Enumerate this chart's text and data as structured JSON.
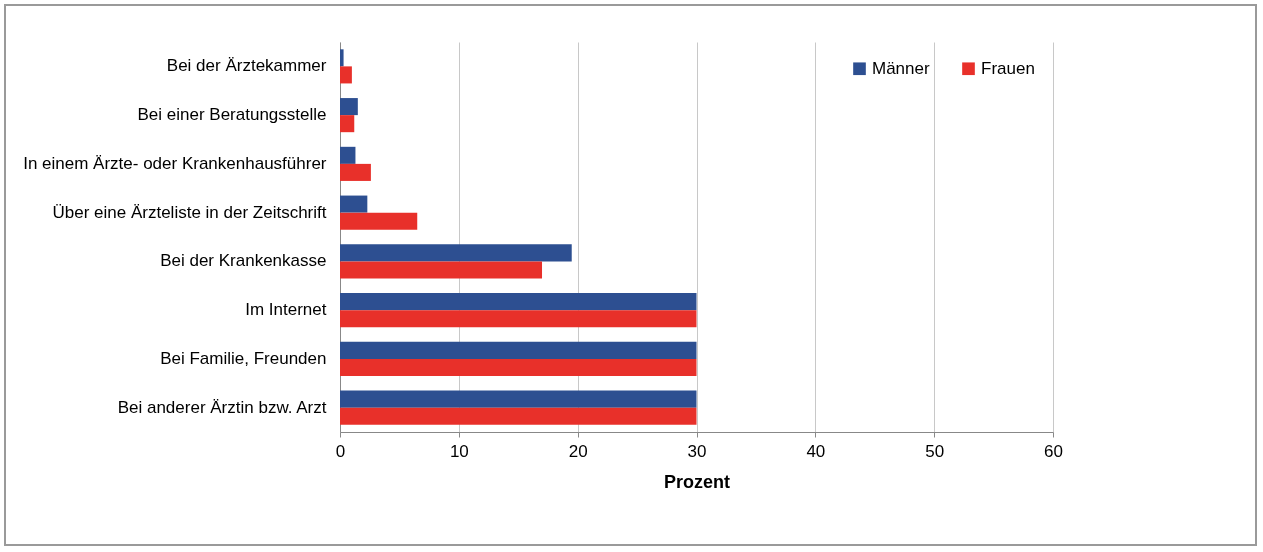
{
  "chart_data": {
    "type": "bar",
    "orientation": "horizontal",
    "xlabel": "Prozent",
    "categories": [
      "Bei der Ärztekammer",
      "Bei einer Beratungsstelle",
      "In einem Ärzte- oder Krankenhausführer",
      "Über eine Ärzteliste in der Zeitschrift",
      "Bei der Krankenkasse",
      "Im Internet",
      "Bei Familie, Freunden",
      "Bei anderer Ärztin bzw. Arzt"
    ],
    "series": [
      {
        "name": "Männer",
        "color": "#2d4f91",
        "values": [
          0.3,
          1.5,
          1.3,
          2.3,
          19.5,
          30,
          30,
          30
        ]
      },
      {
        "name": "Frauen",
        "color": "#e8302a",
        "values": [
          1,
          1.2,
          2.6,
          6.5,
          17,
          30,
          30,
          30
        ]
      }
    ],
    "xlim": [
      0,
      60
    ],
    "xticks": [
      0,
      10,
      20,
      30,
      40,
      50,
      60
    ],
    "grid": "x",
    "legend": "top right"
  }
}
